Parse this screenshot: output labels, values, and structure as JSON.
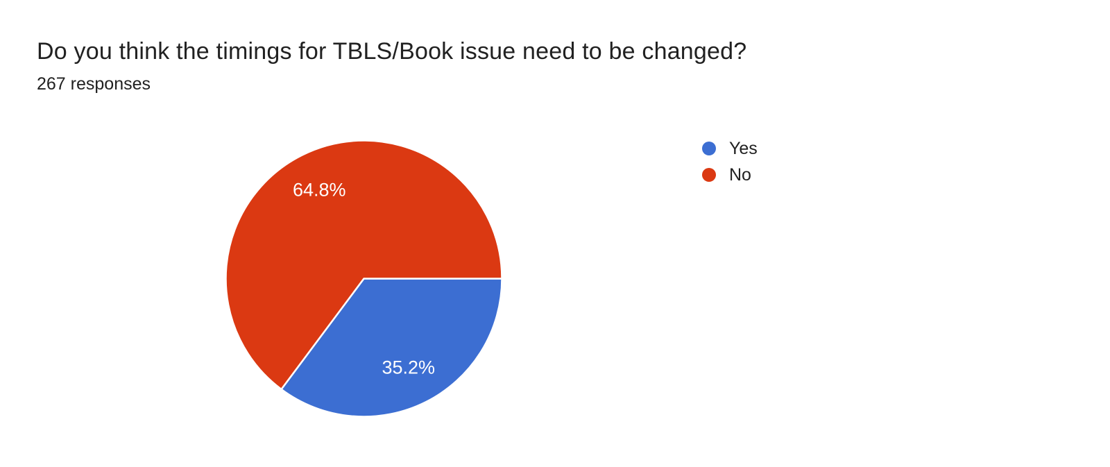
{
  "chart_data": {
    "type": "pie",
    "title": "Do you think the timings for TBLS/Book issue need to be changed?",
    "subtitle": "267 responses",
    "total_responses": 267,
    "categories": [
      "Yes",
      "No"
    ],
    "values": [
      35.2,
      64.8
    ],
    "unit": "percent",
    "labels": [
      "35.2%",
      "64.8%"
    ],
    "colors": [
      "#3C6ED2",
      "#DB3912"
    ],
    "slice_label_color": "#FFFFFF",
    "slice_border_color": "#FFFFFF",
    "start_angle_deg": 0,
    "direction": "clockwise",
    "legend_position": "right"
  }
}
